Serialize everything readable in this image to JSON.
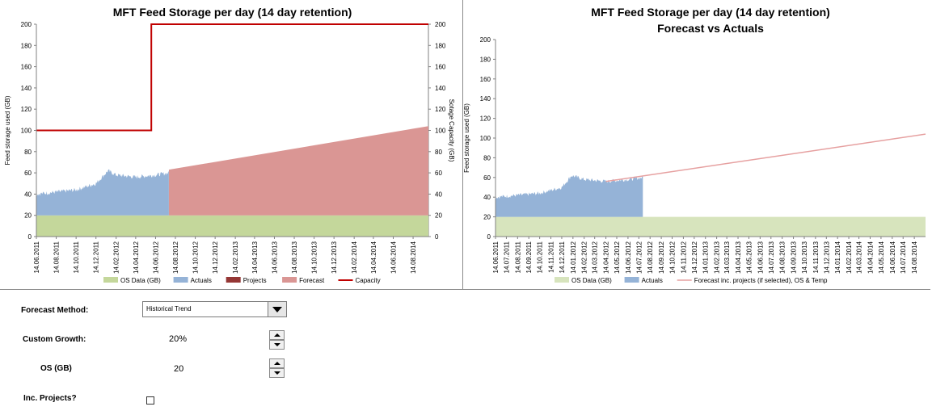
{
  "chart_data": [
    {
      "type": "area",
      "title": "MFT Feed Storage per day (14 day retention)",
      "ylabel": "Feed storage used (GB)",
      "y2label": "Sotage Capacity (GB)",
      "ylim": [
        0,
        200
      ],
      "yticks": [
        "0",
        "20",
        "40",
        "60",
        "80",
        "100",
        "120",
        "140",
        "160",
        "180",
        "200"
      ],
      "y2ticks": [
        "0",
        "20",
        "40",
        "60",
        "80",
        "100",
        "120",
        "140",
        "160",
        "180",
        "200"
      ],
      "xticks": [
        "14.06.2011",
        "14.08.2011",
        "14.10.2011",
        "14.12.2011",
        "14.02.2012",
        "14.04.2012",
        "14.06.2012",
        "14.08.2012",
        "14.10.2012",
        "14.12.2012",
        "14.02.2013",
        "14.04.2013",
        "14.06.2013",
        "14.08.2013",
        "14.10.2013",
        "14.12.2013",
        "14.02.2014",
        "14.04.2014",
        "14.06.2014",
        "14.08.2014"
      ],
      "x_range": [
        "2011-06-14",
        "2014-09-30"
      ],
      "legend": [
        "OS Data (GB)",
        "Actuals",
        "Projects",
        "Forecast",
        "Capacity"
      ],
      "legend_position": "bottom",
      "colors": {
        "os": "#c4d79b",
        "actuals": "#95b3d7",
        "projects": "#953735",
        "forecast": "#da9694",
        "capacity": "#c00000"
      },
      "series": [
        {
          "name": "OS Data (GB)",
          "x": [
            "2011-06-14",
            "2014-09-30"
          ],
          "values": [
            20,
            20
          ]
        },
        {
          "name": "Actuals",
          "x": [
            "2011-06-14",
            "2011-08-14",
            "2011-10-14",
            "2011-12-14",
            "2012-01-20",
            "2012-02-14",
            "2012-04-14",
            "2012-06-14",
            "2012-07-25"
          ],
          "values": [
            40,
            42,
            44,
            50,
            62,
            58,
            56,
            58,
            60
          ]
        },
        {
          "name": "Forecast",
          "x": [
            "2012-07-25",
            "2014-09-30"
          ],
          "values": [
            63,
            104
          ]
        },
        {
          "name": "Capacity",
          "x": [
            "2011-06-14",
            "2012-06-01",
            "2012-06-01",
            "2014-09-30"
          ],
          "values": [
            100,
            100,
            200,
            200
          ]
        }
      ]
    },
    {
      "type": "area",
      "title": "MFT Feed Storage per day (14 day retention)",
      "subtitle": "Forecast vs Actuals",
      "ylabel": "Feed storage used (GB)",
      "ylim": [
        0,
        200
      ],
      "yticks": [
        "0",
        "20",
        "40",
        "60",
        "80",
        "100",
        "120",
        "140",
        "160",
        "180",
        "200"
      ],
      "xticks": [
        "14.06.2011",
        "14.07.2011",
        "14.08.2011",
        "14.09.2011",
        "14.10.2011",
        "14.11.2011",
        "14.12.2011",
        "14.01.2012",
        "14.02.2012",
        "14.03.2012",
        "14.04.2012",
        "14.05.2012",
        "14.06.2012",
        "14.07.2012",
        "14.08.2012",
        "14.09.2012",
        "14.10.2012",
        "14.11.2012",
        "14.12.2012",
        "14.01.2013",
        "14.02.2013",
        "14.03.2013",
        "14.04.2013",
        "14.05.2013",
        "14.06.2013",
        "14.07.2013",
        "14.08.2013",
        "14.09.2013",
        "14.10.2013",
        "14.11.2013",
        "14.12.2013",
        "14.01.2014",
        "14.02.2014",
        "14.03.2014",
        "14.04.2014",
        "14.05.2014",
        "14.06.2014",
        "14.07.2014",
        "14.08.2014"
      ],
      "x_range": [
        "2011-06-14",
        "2014-09-14"
      ],
      "legend": [
        "OS Data (GB)",
        "Actuals",
        "Forecast inc. projects (if selected), OS & Temp"
      ],
      "legend_position": "bottom",
      "colors": {
        "os": "#d7e4bd",
        "actuals": "#95b3d7",
        "forecast": "#e6a0a0"
      },
      "series": [
        {
          "name": "OS Data (GB)",
          "x": [
            "2011-06-14",
            "2014-09-14"
          ],
          "values": [
            20,
            20
          ]
        },
        {
          "name": "Actuals",
          "x": [
            "2011-06-14",
            "2011-08-14",
            "2011-10-14",
            "2011-12-14",
            "2012-01-10",
            "2012-02-14",
            "2012-04-14",
            "2012-06-14",
            "2012-07-25"
          ],
          "values": [
            40,
            42,
            44,
            50,
            62,
            58,
            56,
            58,
            60
          ]
        },
        {
          "name": "Forecast inc. projects (if selected), OS & Temp",
          "x": [
            "2012-04-14",
            "2014-09-14"
          ],
          "values": [
            56,
            104
          ]
        }
      ]
    }
  ],
  "controls": {
    "forecast_method_label": "Forecast Method:",
    "forecast_method_value": "Historical Trend",
    "custom_growth_label": "Custom Growth:",
    "custom_growth_value": "20%",
    "os_label": "OS (GB)",
    "os_value": "20",
    "inc_projects_label": "Inc. Projects?"
  }
}
